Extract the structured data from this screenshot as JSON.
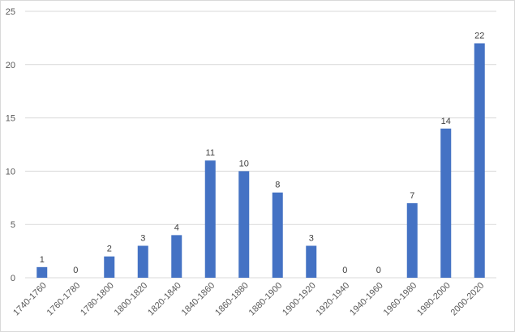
{
  "chart_data": {
    "type": "bar",
    "title": "",
    "xlabel": "",
    "ylabel": "",
    "categories": [
      "1740-1760",
      "1760-1780",
      "1780-1800",
      "1800-1820",
      "1820-1840",
      "1840-1860",
      "1860-1880",
      "1880-1900",
      "1900-1920",
      "1920-1940",
      "1940-1960",
      "1960-1980",
      "1980-2000",
      "2000-2020"
    ],
    "values": [
      1,
      0,
      2,
      3,
      4,
      11,
      10,
      8,
      3,
      0,
      0,
      7,
      14,
      22
    ],
    "ylim": [
      0,
      25
    ],
    "yticks": [
      0,
      5,
      10,
      15,
      20,
      25
    ],
    "grid": true,
    "legend": "none",
    "data_labels": true,
    "bar_color": "#4472C4"
  }
}
